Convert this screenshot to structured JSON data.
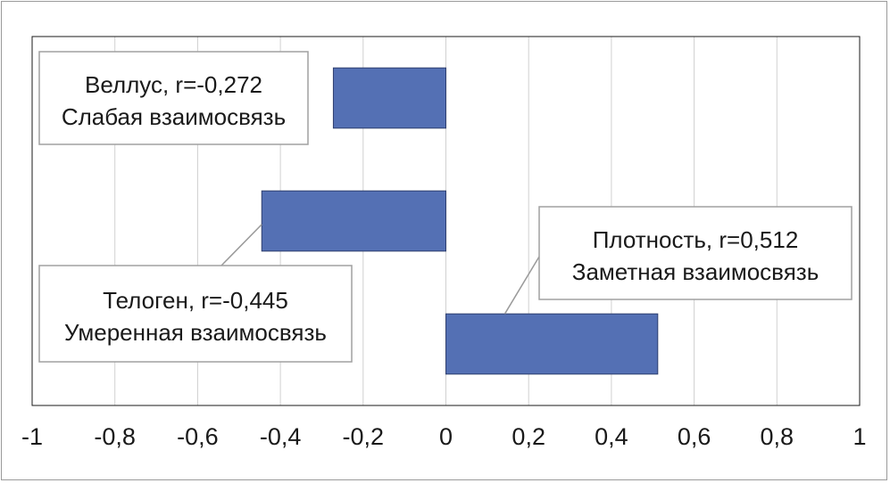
{
  "chart_data": {
    "type": "bar",
    "orientation": "horizontal",
    "categories": [
      "Веллус",
      "Телоген",
      "Плотность"
    ],
    "values": [
      -0.272,
      -0.445,
      0.512
    ],
    "xlim": [
      -1,
      1
    ],
    "x_ticks": [
      -1,
      -0.8,
      -0.6,
      -0.4,
      -0.2,
      0,
      0.2,
      0.4,
      0.6,
      0.8,
      1
    ],
    "x_tick_labels": [
      "-1",
      "-0,8",
      "-0,6",
      "-0,4",
      "-0,2",
      "0",
      "0,2",
      "0,4",
      "0,6",
      "0,8",
      "1"
    ],
    "grid": "vertical",
    "bar_color": "#5470b4",
    "annotations": [
      {
        "line1": "Веллус, r=-0,272",
        "line2": "Слабая взаимосвязь"
      },
      {
        "line1": "Телоген, r=-0,445",
        "line2": "Умеренная взаимосвязь"
      },
      {
        "line1": "Плотность, r=0,512",
        "line2": "Заметная взаимосвязь"
      }
    ]
  }
}
